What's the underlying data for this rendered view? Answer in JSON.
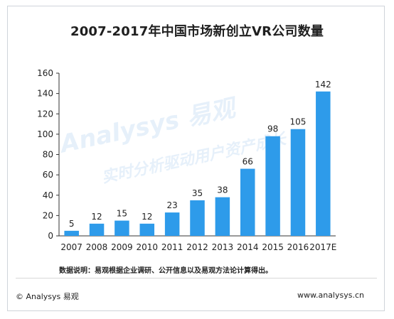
{
  "chart_data": {
    "type": "bar",
    "title": "2007-2017年中国市场新创立VR公司数量",
    "categories": [
      "2007",
      "2008",
      "2009",
      "2010",
      "2011",
      "2012",
      "2013",
      "2014",
      "2015",
      "2016",
      "2017E"
    ],
    "values": [
      5,
      12,
      15,
      12,
      23,
      35,
      38,
      66,
      98,
      105,
      142
    ],
    "data_labels": [
      "5",
      "12",
      "15",
      "12",
      "23",
      "35",
      "38",
      "66",
      "98",
      "105",
      "142"
    ],
    "yticks": [
      "0",
      "20",
      "40",
      "60",
      "80",
      "100",
      "120",
      "140",
      "160"
    ],
    "ylim": [
      0,
      160
    ],
    "xlabel": "",
    "ylabel": "",
    "bar_color": "#2e9bea",
    "grid": false,
    "legend": "none"
  },
  "note": "数据说明：易观根据企业调研、公开信息以及易观方法论计算得出。",
  "footer": {
    "copyright": "© Analysys 易观",
    "website": "www.analysys.cn"
  },
  "watermark": {
    "brand": "Analysys 易观",
    "slogan": "实时分析驱动用户资产成长"
  }
}
